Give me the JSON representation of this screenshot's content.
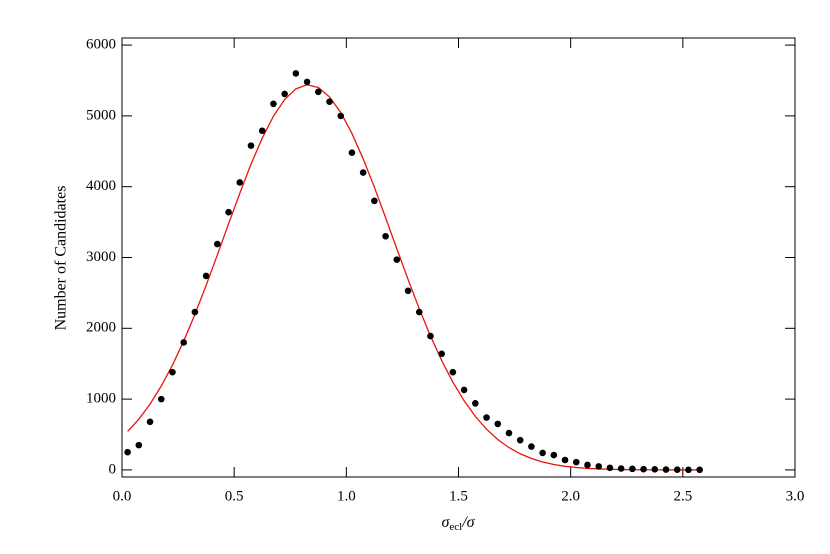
{
  "chart_data": {
    "type": "scatter-line",
    "xlabel": {
      "symbol": "σ",
      "subscript": "ecl",
      "rest": "/σ"
    },
    "ylabel": "Number of Candidates",
    "x": [
      0.025,
      0.075,
      0.125,
      0.175,
      0.225,
      0.275,
      0.325,
      0.375,
      0.425,
      0.475,
      0.525,
      0.575,
      0.625,
      0.675,
      0.725,
      0.775,
      0.825,
      0.875,
      0.925,
      0.975,
      1.025,
      1.075,
      1.125,
      1.175,
      1.225,
      1.275,
      1.325,
      1.375,
      1.425,
      1.475,
      1.525,
      1.575,
      1.625,
      1.675,
      1.725,
      1.775,
      1.825,
      1.875,
      1.925,
      1.975,
      2.025,
      2.075,
      2.125,
      2.175,
      2.225,
      2.275,
      2.325,
      2.375,
      2.425,
      2.475,
      2.525,
      2.575
    ],
    "series": [
      {
        "style": "points",
        "color": "#000000",
        "values": [
          250,
          350,
          680,
          1000,
          1380,
          1800,
          2230,
          2740,
          3190,
          3640,
          4060,
          4580,
          4790,
          5170,
          5310,
          5600,
          5480,
          5340,
          5200,
          5000,
          4480,
          4200,
          3800,
          3300,
          2970,
          2530,
          2230,
          1890,
          1640,
          1380,
          1130,
          940,
          740,
          650,
          520,
          420,
          330,
          240,
          210,
          140,
          110,
          70,
          50,
          30,
          20,
          15,
          10,
          8,
          5,
          3,
          2,
          1
        ]
      },
      {
        "style": "line",
        "color": "#e8140f",
        "values": [
          543,
          717,
          929,
          1184,
          1481,
          1820,
          2197,
          2606,
          3036,
          3476,
          3906,
          4318,
          4685,
          4995,
          5231,
          5382,
          5439,
          5401,
          5268,
          5048,
          4752,
          4394,
          3993,
          3563,
          3124,
          2691,
          2277,
          1892,
          1545,
          1239,
          976,
          756,
          575,
          430,
          315,
          228,
          161,
          112,
          77,
          51,
          34,
          22,
          14,
          9,
          5,
          3,
          2,
          1,
          1,
          0,
          0,
          0
        ]
      }
    ],
    "xlim": [
      0,
      3
    ],
    "ylim": [
      -100,
      6100
    ],
    "xticks": [
      {
        "value": 0,
        "label": "0.0"
      },
      0.5,
      {
        "value": 1,
        "label": "1.0"
      },
      1.5,
      {
        "value": 2,
        "label": "2.0"
      },
      2.5,
      {
        "value": 3,
        "label": "3.0"
      }
    ],
    "yticks": [
      0,
      1000,
      2000,
      3000,
      4000,
      5000,
      6000
    ]
  }
}
